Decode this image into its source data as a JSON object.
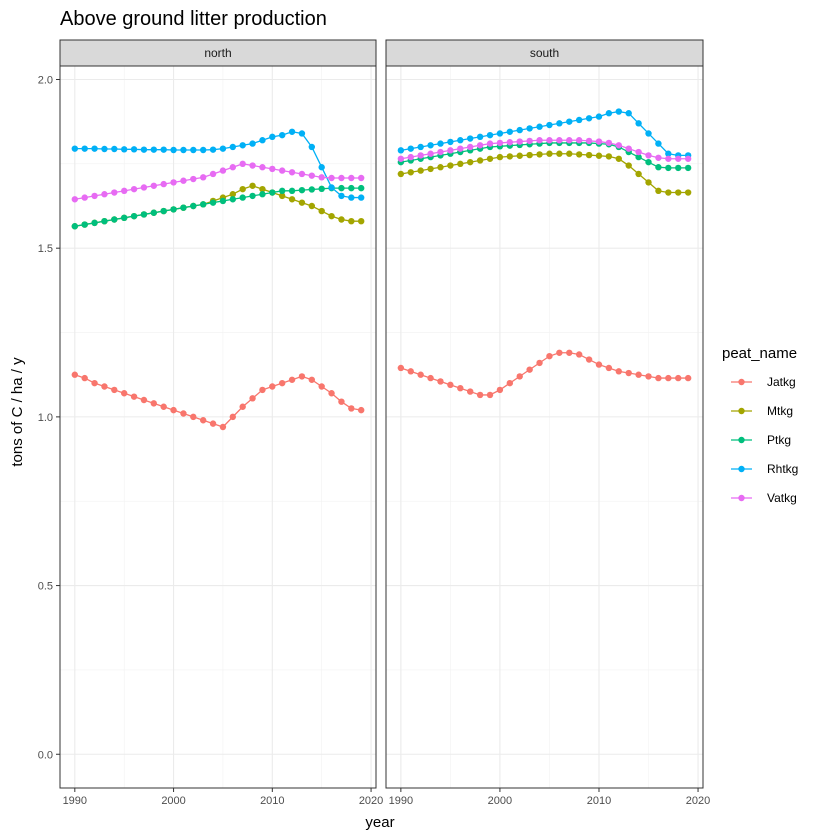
{
  "chart_data": {
    "type": "line",
    "title": "Above ground litter production",
    "xlabel": "year",
    "ylabel": "tons of C / ha / y",
    "xlim": [
      1988.5,
      2020.5
    ],
    "ylim": [
      -0.1,
      2.04
    ],
    "x_ticks": [
      1990,
      2000,
      2010,
      2020
    ],
    "x_tick_labels": [
      "1990",
      "2000",
      "2010",
      "2020"
    ],
    "y_ticks": [
      0.0,
      0.5,
      1.0,
      1.5,
      2.0
    ],
    "y_tick_labels": [
      "0.0",
      "0.5",
      "1.0",
      "1.5",
      "2.0"
    ],
    "grid": true,
    "legend_title": "peat_name",
    "legend_position": "right",
    "x_start": 1990,
    "x_end": 2019,
    "series_styles": [
      {
        "name": "Jatkg",
        "color": "#F8766D"
      },
      {
        "name": "Mtkg",
        "color": "#A3A500"
      },
      {
        "name": "Ptkg",
        "color": "#00BF7D"
      },
      {
        "name": "Rhtkg",
        "color": "#00B0F6"
      },
      {
        "name": "Vatkg",
        "color": "#E76BF3"
      }
    ],
    "panels": [
      {
        "label": "north",
        "series": [
          {
            "name": "Jatkg",
            "values": [
              1.125,
              1.115,
              1.1,
              1.09,
              1.08,
              1.07,
              1.06,
              1.05,
              1.04,
              1.03,
              1.02,
              1.01,
              1.0,
              0.99,
              0.98,
              0.97,
              1.0,
              1.03,
              1.055,
              1.08,
              1.09,
              1.1,
              1.11,
              1.12,
              1.11,
              1.09,
              1.07,
              1.045,
              1.025,
              1.02
            ]
          },
          {
            "name": "Mtkg",
            "values": [
              1.565,
              1.57,
              1.575,
              1.58,
              1.585,
              1.59,
              1.595,
              1.6,
              1.605,
              1.61,
              1.615,
              1.62,
              1.625,
              1.63,
              1.64,
              1.65,
              1.66,
              1.675,
              1.685,
              1.675,
              1.665,
              1.655,
              1.645,
              1.635,
              1.625,
              1.61,
              1.595,
              1.585,
              1.58,
              1.58
            ]
          },
          {
            "name": "Ptkg",
            "values": [
              1.565,
              1.57,
              1.575,
              1.58,
              1.585,
              1.59,
              1.595,
              1.6,
              1.605,
              1.61,
              1.615,
              1.62,
              1.625,
              1.63,
              1.635,
              1.64,
              1.645,
              1.65,
              1.655,
              1.66,
              1.665,
              1.67,
              1.67,
              1.672,
              1.674,
              1.676,
              1.678,
              1.678,
              1.678,
              1.678
            ]
          },
          {
            "name": "Rhtkg",
            "values": [
              1.795,
              1.795,
              1.795,
              1.794,
              1.794,
              1.793,
              1.793,
              1.792,
              1.792,
              1.792,
              1.791,
              1.791,
              1.791,
              1.791,
              1.792,
              1.795,
              1.8,
              1.805,
              1.81,
              1.82,
              1.83,
              1.835,
              1.845,
              1.84,
              1.8,
              1.74,
              1.68,
              1.655,
              1.65,
              1.65
            ]
          },
          {
            "name": "Vatkg",
            "values": [
              1.645,
              1.65,
              1.655,
              1.66,
              1.665,
              1.67,
              1.675,
              1.68,
              1.685,
              1.69,
              1.695,
              1.7,
              1.705,
              1.71,
              1.72,
              1.73,
              1.74,
              1.75,
              1.745,
              1.74,
              1.735,
              1.73,
              1.725,
              1.72,
              1.715,
              1.71,
              1.708,
              1.708,
              1.708,
              1.708
            ]
          }
        ]
      },
      {
        "label": "south",
        "series": [
          {
            "name": "Jatkg",
            "values": [
              1.145,
              1.135,
              1.125,
              1.115,
              1.105,
              1.095,
              1.085,
              1.075,
              1.065,
              1.065,
              1.08,
              1.1,
              1.12,
              1.14,
              1.16,
              1.18,
              1.19,
              1.19,
              1.185,
              1.17,
              1.155,
              1.145,
              1.135,
              1.13,
              1.125,
              1.12,
              1.115,
              1.115,
              1.115,
              1.115
            ]
          },
          {
            "name": "Mtkg",
            "values": [
              1.72,
              1.725,
              1.73,
              1.735,
              1.74,
              1.745,
              1.75,
              1.755,
              1.76,
              1.765,
              1.77,
              1.772,
              1.774,
              1.776,
              1.778,
              1.78,
              1.78,
              1.78,
              1.778,
              1.776,
              1.774,
              1.772,
              1.765,
              1.745,
              1.72,
              1.695,
              1.67,
              1.665,
              1.665,
              1.665
            ]
          },
          {
            "name": "Ptkg",
            "values": [
              1.755,
              1.76,
              1.765,
              1.77,
              1.775,
              1.78,
              1.785,
              1.79,
              1.795,
              1.8,
              1.802,
              1.804,
              1.806,
              1.808,
              1.81,
              1.812,
              1.812,
              1.812,
              1.812,
              1.812,
              1.81,
              1.808,
              1.8,
              1.785,
              1.77,
              1.755,
              1.74,
              1.738,
              1.738,
              1.738
            ]
          },
          {
            "name": "Rhtkg",
            "values": [
              1.79,
              1.795,
              1.8,
              1.805,
              1.81,
              1.815,
              1.82,
              1.825,
              1.83,
              1.835,
              1.84,
              1.845,
              1.85,
              1.855,
              1.86,
              1.865,
              1.87,
              1.875,
              1.88,
              1.885,
              1.89,
              1.9,
              1.905,
              1.9,
              1.87,
              1.84,
              1.81,
              1.78,
              1.775,
              1.775
            ]
          },
          {
            "name": "Vatkg",
            "values": [
              1.765,
              1.77,
              1.775,
              1.78,
              1.785,
              1.79,
              1.795,
              1.8,
              1.805,
              1.81,
              1.812,
              1.814,
              1.816,
              1.818,
              1.82,
              1.82,
              1.82,
              1.82,
              1.82,
              1.818,
              1.816,
              1.812,
              1.805,
              1.795,
              1.785,
              1.775,
              1.768,
              1.765,
              1.765,
              1.765
            ]
          }
        ]
      }
    ]
  }
}
